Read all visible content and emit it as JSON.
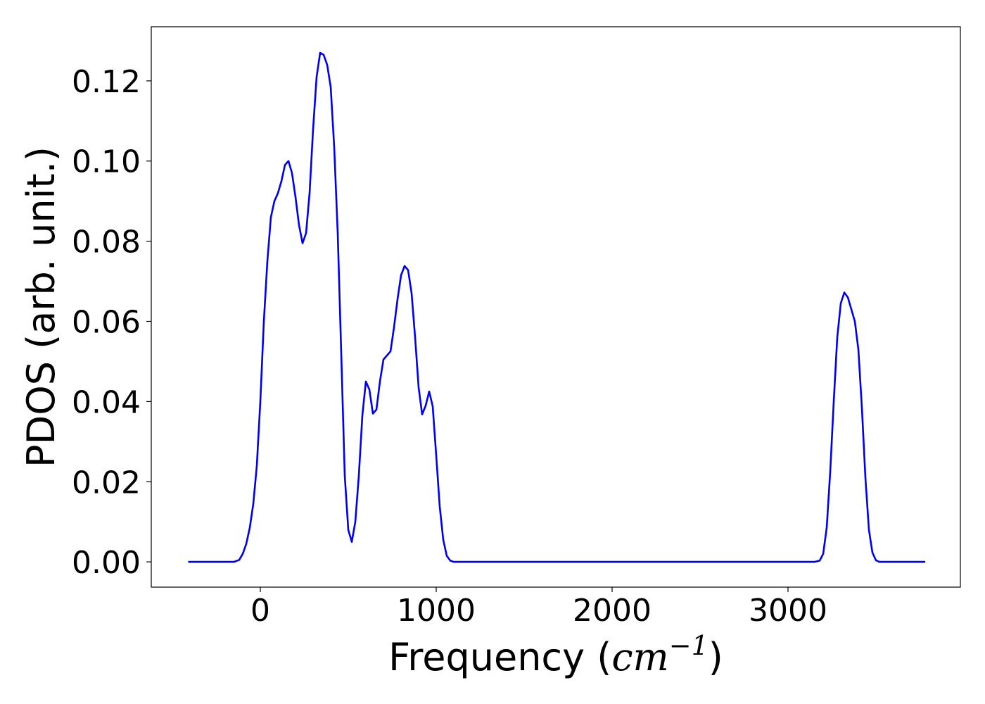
{
  "chart_data": {
    "type": "line",
    "title": "",
    "xlabel": "Frequency",
    "xlabel_unit_base": "cm",
    "xlabel_unit_exponent": "−1",
    "ylabel": "PDOS (arb. unit.)",
    "xlim": [
      -620,
      3980
    ],
    "ylim": [
      -0.0063,
      0.1335
    ],
    "xticks": [
      0,
      1000,
      2000,
      3000
    ],
    "xtick_labels": [
      "0",
      "1000",
      "2000",
      "3000"
    ],
    "yticks": [
      0.0,
      0.02,
      0.04,
      0.06,
      0.08,
      0.1,
      0.12
    ],
    "ytick_labels": [
      "0.00",
      "0.02",
      "0.04",
      "0.06",
      "0.08",
      "0.10",
      "0.12"
    ],
    "grid": false,
    "series": [
      {
        "color": "#0000ee",
        "x": [
          -410,
          -150,
          -120,
          -100,
          -80,
          -60,
          -40,
          -20,
          0,
          20,
          40,
          60,
          80,
          100,
          120,
          140,
          160,
          180,
          200,
          220,
          240,
          260,
          280,
          300,
          320,
          340,
          360,
          380,
          400,
          420,
          440,
          460,
          480,
          500,
          520,
          540,
          560,
          580,
          600,
          620,
          640,
          660,
          680,
          700,
          720,
          740,
          760,
          780,
          800,
          820,
          840,
          860,
          880,
          900,
          920,
          940,
          960,
          980,
          1000,
          1020,
          1040,
          1060,
          1080,
          1100,
          1120,
          1140,
          1160,
          1180,
          1200,
          3150,
          3180,
          3200,
          3220,
          3240,
          3260,
          3280,
          3300,
          3320,
          3340,
          3360,
          3380,
          3400,
          3420,
          3440,
          3460,
          3480,
          3500,
          3520,
          3540,
          3560,
          3580,
          3780
        ],
        "y": [
          0.0,
          0.0,
          0.0005,
          0.002,
          0.0045,
          0.0085,
          0.0145,
          0.024,
          0.04,
          0.06,
          0.075,
          0.086,
          0.09,
          0.092,
          0.095,
          0.099,
          0.1,
          0.097,
          0.091,
          0.084,
          0.0795,
          0.082,
          0.092,
          0.108,
          0.121,
          0.127,
          0.1265,
          0.124,
          0.1185,
          0.1035,
          0.082,
          0.052,
          0.0215,
          0.008,
          0.005,
          0.01,
          0.0215,
          0.0365,
          0.045,
          0.043,
          0.037,
          0.038,
          0.045,
          0.0505,
          0.0515,
          0.0525,
          0.0585,
          0.0655,
          0.0715,
          0.0738,
          0.0728,
          0.067,
          0.056,
          0.0435,
          0.0368,
          0.039,
          0.0425,
          0.0388,
          0.0265,
          0.0138,
          0.0055,
          0.0015,
          0.0003,
          0.0,
          0.0,
          0.0,
          0.0,
          0.0,
          0.0,
          0.0,
          0.0003,
          0.002,
          0.0085,
          0.0225,
          0.04,
          0.056,
          0.0645,
          0.0672,
          0.066,
          0.063,
          0.06,
          0.053,
          0.0385,
          0.021,
          0.008,
          0.0023,
          0.0004,
          0.0,
          0.0,
          0.0,
          0.0,
          0.0
        ]
      }
    ]
  }
}
